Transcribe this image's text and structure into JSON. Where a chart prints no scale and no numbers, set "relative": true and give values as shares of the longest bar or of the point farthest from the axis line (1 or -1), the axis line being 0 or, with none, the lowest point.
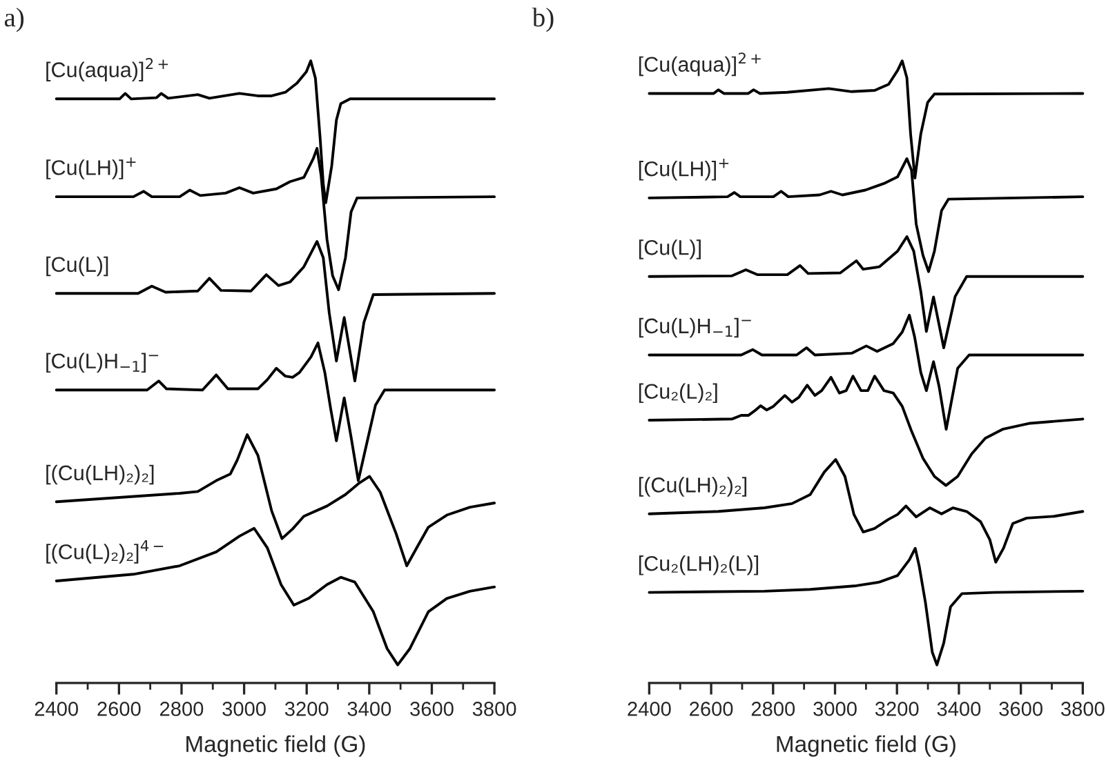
{
  "chart_data": [
    {
      "type": "line",
      "title": "a)",
      "xlabel": "Magnetic field (G)",
      "relative": true,
      "xlim": [
        2400,
        3800
      ],
      "xticks": [
        2400,
        2600,
        2800,
        3000,
        3200,
        3400,
        3600,
        3800
      ],
      "tick_labels": "x",
      "legend": false,
      "grid": false,
      "series": [
        {
          "name": "[Cu(aqua)]$^{2+}$",
          "color": "#000000",
          "x": [
            2400,
            2602,
            2620,
            2639,
            2720,
            2735,
            2757,
            2852,
            2889,
            2985,
            3044,
            3088,
            3132,
            3169,
            3199,
            3213,
            3228,
            3243,
            3253,
            3261,
            3280,
            3295,
            3309,
            3339,
            3800
          ],
          "values": [
            0.937,
            0.937,
            0.946,
            0.937,
            0.939,
            0.946,
            0.938,
            0.944,
            0.938,
            0.946,
            0.942,
            0.942,
            0.948,
            0.963,
            0.982,
            1.0,
            0.971,
            0.872,
            0.796,
            0.765,
            0.826,
            0.902,
            0.929,
            0.937,
            0.937
          ]
        },
        {
          "name": "[Cu(LH)]$^{+}$",
          "color": "#000000",
          "x": [
            2400,
            2646,
            2679,
            2705,
            2794,
            2826,
            2860,
            2941,
            2985,
            3029,
            3103,
            3147,
            3191,
            3221,
            3233,
            3246,
            3265,
            3283,
            3302,
            3324,
            3342,
            3361,
            3800
          ],
          "values": [
            0.775,
            0.775,
            0.784,
            0.775,
            0.775,
            0.786,
            0.777,
            0.781,
            0.79,
            0.781,
            0.788,
            0.8,
            0.807,
            0.838,
            0.855,
            0.811,
            0.704,
            0.644,
            0.621,
            0.674,
            0.75,
            0.773,
            0.775
          ]
        },
        {
          "name": "[Cu(L)]",
          "color": "#000000",
          "x": [
            2400,
            2661,
            2705,
            2749,
            2852,
            2889,
            2926,
            3022,
            3071,
            3110,
            3147,
            3191,
            3233,
            3253,
            3272,
            3295,
            3320,
            3354,
            3383,
            3413,
            3800
          ],
          "values": [
            0.615,
            0.615,
            0.627,
            0.617,
            0.619,
            0.64,
            0.62,
            0.619,
            0.646,
            0.628,
            0.634,
            0.659,
            0.701,
            0.674,
            0.583,
            0.503,
            0.575,
            0.47,
            0.567,
            0.613,
            0.615
          ]
        },
        {
          "name": "[Cu(L)H$_{−1}$]$^{−}$",
          "color": "#000000",
          "x": [
            2400,
            2690,
            2727,
            2752,
            2867,
            2911,
            2948,
            3044,
            3074,
            3103,
            3132,
            3155,
            3177,
            3214,
            3236,
            3258,
            3277,
            3295,
            3320,
            3342,
            3365,
            3390,
            3420,
            3449,
            3800
          ],
          "values": [
            0.455,
            0.455,
            0.47,
            0.457,
            0.455,
            0.48,
            0.457,
            0.457,
            0.472,
            0.491,
            0.478,
            0.476,
            0.484,
            0.51,
            0.533,
            0.484,
            0.423,
            0.371,
            0.442,
            0.377,
            0.305,
            0.362,
            0.43,
            0.455,
            0.455
          ]
        },
        {
          "name": "[(Cu(LH)₂)₂]",
          "color": "#000000",
          "x": [
            2400,
            2794,
            2852,
            2911,
            2956,
            2978,
            3010,
            3044,
            3088,
            3121,
            3155,
            3191,
            3265,
            3324,
            3368,
            3401,
            3435,
            3486,
            3520,
            3552,
            3589,
            3648,
            3722,
            3800
          ],
          "values": [
            0.27,
            0.284,
            0.287,
            0.305,
            0.316,
            0.339,
            0.381,
            0.347,
            0.255,
            0.209,
            0.225,
            0.246,
            0.263,
            0.282,
            0.301,
            0.312,
            0.286,
            0.217,
            0.164,
            0.194,
            0.228,
            0.248,
            0.261,
            0.268
          ]
        },
        {
          "name": "[(Cu(L)₂)₂]$^{4−}$",
          "color": "#000000",
          "x": [
            2400,
            2646,
            2794,
            2911,
            2985,
            3032,
            3074,
            3118,
            3159,
            3206,
            3265,
            3309,
            3354,
            3413,
            3457,
            3491,
            3530,
            3589,
            3648,
            3722,
            3800
          ],
          "values": [
            0.139,
            0.15,
            0.164,
            0.187,
            0.213,
            0.226,
            0.194,
            0.133,
            0.099,
            0.11,
            0.133,
            0.145,
            0.137,
            0.088,
            0.027,
            0.0,
            0.027,
            0.088,
            0.11,
            0.122,
            0.129
          ]
        }
      ]
    },
    {
      "type": "line",
      "title": "b)",
      "xlabel": "Magnetic field (G)",
      "relative": true,
      "xlim": [
        2400,
        3800
      ],
      "xticks": [
        2400,
        2600,
        2800,
        3000,
        3200,
        3400,
        3600,
        3800
      ],
      "tick_labels": "x",
      "legend": false,
      "grid": false,
      "series": [
        {
          "name": "[Cu(aqua)]$^{2+}$",
          "color": "#000000",
          "x": [
            2400,
            2608,
            2623,
            2641,
            2720,
            2737,
            2757,
            2846,
            2980,
            3054,
            3128,
            3173,
            3202,
            3217,
            3232,
            3244,
            3258,
            3277,
            3299,
            3321,
            3800
          ],
          "values": [
            0.946,
            0.946,
            0.952,
            0.946,
            0.946,
            0.952,
            0.946,
            0.948,
            0.954,
            0.949,
            0.951,
            0.961,
            0.984,
            1.0,
            0.972,
            0.879,
            0.806,
            0.879,
            0.931,
            0.945,
            0.946
          ]
        },
        {
          "name": "[Cu(LH)]$^{+}$",
          "color": "#000000",
          "x": [
            2400,
            2653,
            2675,
            2694,
            2801,
            2826,
            2849,
            2950,
            2987,
            3024,
            3098,
            3158,
            3202,
            3232,
            3247,
            3262,
            3284,
            3302,
            3321,
            3344,
            3366,
            3800
          ],
          "values": [
            0.773,
            0.775,
            0.782,
            0.775,
            0.775,
            0.784,
            0.775,
            0.778,
            0.784,
            0.778,
            0.786,
            0.797,
            0.808,
            0.838,
            0.819,
            0.73,
            0.678,
            0.651,
            0.685,
            0.752,
            0.771,
            0.775
          ]
        },
        {
          "name": "[Cu(L)]",
          "color": "#000000",
          "x": [
            2400,
            2667,
            2712,
            2749,
            2846,
            2887,
            2913,
            3017,
            3069,
            3091,
            3143,
            3202,
            3232,
            3254,
            3277,
            3295,
            3318,
            3351,
            3388,
            3425,
            3800
          ],
          "values": [
            0.643,
            0.644,
            0.654,
            0.646,
            0.646,
            0.661,
            0.648,
            0.649,
            0.669,
            0.655,
            0.659,
            0.685,
            0.709,
            0.685,
            0.618,
            0.552,
            0.609,
            0.525,
            0.61,
            0.643,
            0.643
          ]
        },
        {
          "name": "[Cu(L)H$_{−1}$]$^{−}$",
          "color": "#000000",
          "x": [
            2400,
            2697,
            2734,
            2764,
            2876,
            2908,
            2935,
            3054,
            3101,
            3136,
            3188,
            3217,
            3240,
            3257,
            3277,
            3295,
            3318,
            3336,
            3359,
            3396,
            3433,
            3800
          ],
          "values": [
            0.513,
            0.513,
            0.522,
            0.513,
            0.513,
            0.525,
            0.513,
            0.516,
            0.528,
            0.519,
            0.532,
            0.551,
            0.579,
            0.543,
            0.484,
            0.454,
            0.502,
            0.461,
            0.39,
            0.491,
            0.513,
            0.513
          ]
        },
        {
          "name": "[Cu₂(L)₂]",
          "color": "#000000",
          "x": [
            2400,
            2667,
            2697,
            2720,
            2739,
            2760,
            2779,
            2801,
            2838,
            2861,
            2883,
            2910,
            2935,
            2957,
            2987,
            3014,
            3036,
            3058,
            3084,
            3106,
            3128,
            3158,
            3188,
            3217,
            3247,
            3284,
            3321,
            3358,
            3396,
            3441,
            3485,
            3541,
            3630,
            3800
          ],
          "values": [
            0.405,
            0.407,
            0.413,
            0.413,
            0.42,
            0.429,
            0.422,
            0.428,
            0.446,
            0.435,
            0.443,
            0.463,
            0.446,
            0.454,
            0.476,
            0.45,
            0.454,
            0.478,
            0.454,
            0.454,
            0.478,
            0.454,
            0.45,
            0.428,
            0.387,
            0.342,
            0.312,
            0.297,
            0.312,
            0.349,
            0.375,
            0.39,
            0.4,
            0.407
          ]
        },
        {
          "name": "[(Cu(LH)₂)₂]",
          "color": "#000000",
          "x": [
            2400,
            2623,
            2772,
            2861,
            2920,
            2965,
            3002,
            3032,
            3061,
            3091,
            3128,
            3173,
            3202,
            3229,
            3262,
            3306,
            3344,
            3381,
            3425,
            3470,
            3500,
            3519,
            3544,
            3574,
            3619,
            3708,
            3800
          ],
          "values": [
            0.25,
            0.254,
            0.26,
            0.267,
            0.282,
            0.319,
            0.34,
            0.312,
            0.249,
            0.22,
            0.226,
            0.241,
            0.249,
            0.263,
            0.245,
            0.26,
            0.25,
            0.26,
            0.254,
            0.237,
            0.207,
            0.17,
            0.193,
            0.234,
            0.243,
            0.246,
            0.254
          ]
        },
        {
          "name": "[Cu₂(LH)₂(L)]",
          "color": "#000000",
          "x": [
            2400,
            2772,
            2920,
            3069,
            3143,
            3202,
            3240,
            3259,
            3272,
            3292,
            3314,
            3329,
            3351,
            3373,
            3410,
            3514,
            3800
          ],
          "values": [
            0.12,
            0.122,
            0.125,
            0.131,
            0.137,
            0.148,
            0.174,
            0.193,
            0.163,
            0.103,
            0.021,
            0.0,
            0.036,
            0.096,
            0.118,
            0.12,
            0.122
          ]
        }
      ]
    }
  ]
}
